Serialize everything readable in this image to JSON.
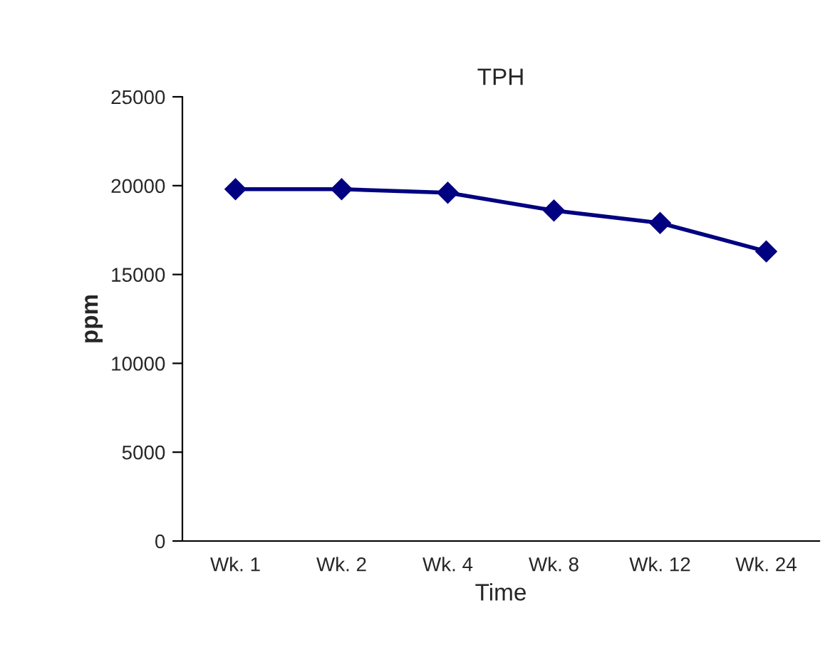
{
  "chart_data": {
    "type": "line",
    "title": "TPH",
    "xlabel": "Time",
    "ylabel": "ppm",
    "categories": [
      "Wk. 1",
      "Wk. 2",
      "Wk. 4",
      "Wk. 8",
      "Wk. 12",
      "Wk. 24"
    ],
    "series": [
      {
        "color": "#000080",
        "values": [
          19800,
          19800,
          19600,
          18600,
          17900,
          16300
        ]
      }
    ],
    "ylim": [
      0,
      25000
    ],
    "yticks": [
      0,
      5000,
      10000,
      15000,
      20000,
      25000
    ],
    "grid": false,
    "legend": false,
    "marker": "diamond",
    "line_style": "solid"
  }
}
